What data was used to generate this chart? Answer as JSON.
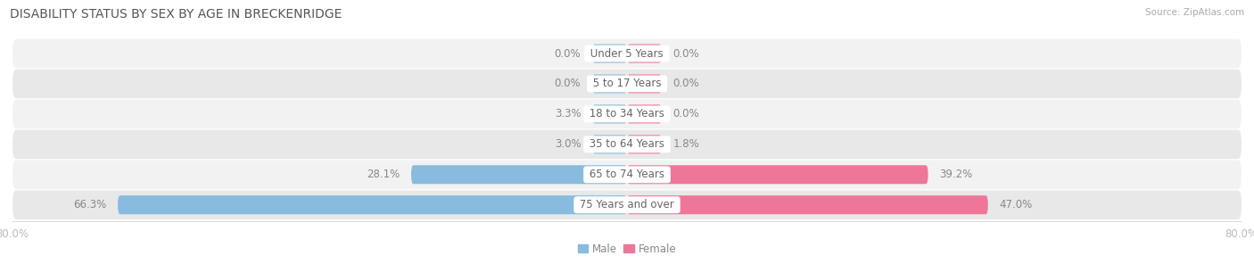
{
  "title": "DISABILITY STATUS BY SEX BY AGE IN BRECKENRIDGE",
  "source": "Source: ZipAtlas.com",
  "categories": [
    "Under 5 Years",
    "5 to 17 Years",
    "18 to 34 Years",
    "35 to 64 Years",
    "65 to 74 Years",
    "75 Years and over"
  ],
  "male_values": [
    0.0,
    0.0,
    3.3,
    3.0,
    28.1,
    66.3
  ],
  "female_values": [
    0.0,
    0.0,
    0.0,
    1.8,
    39.2,
    47.0
  ],
  "xlim": 80.0,
  "male_color": "#88bbdd",
  "female_color": "#ee7799",
  "male_label": "Male",
  "female_label": "Female",
  "row_bg_light": "#f2f2f2",
  "row_bg_dark": "#e8e8e8",
  "title_color": "#555555",
  "value_label_color": "#888888",
  "axis_label_color": "#bbbbbb",
  "category_text_color": "#666666",
  "bar_height": 0.62,
  "min_bar_width": 4.5,
  "title_fontsize": 10.0,
  "source_fontsize": 7.5,
  "label_fontsize": 8.5,
  "cat_fontsize": 8.5
}
